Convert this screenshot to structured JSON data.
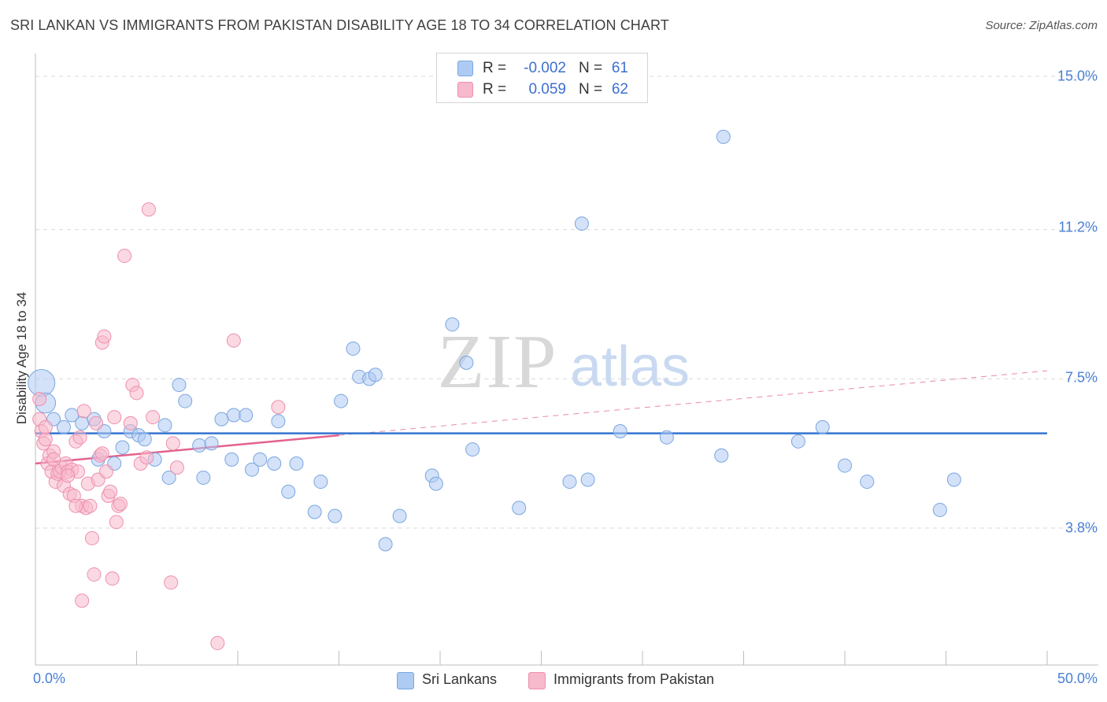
{
  "header": {
    "title": "SRI LANKAN VS IMMIGRANTS FROM PAKISTAN DISABILITY AGE 18 TO 34 CORRELATION CHART",
    "source": "Source: ZipAtlas.com"
  },
  "watermark": {
    "part1": "ZIP",
    "part2": "atlas"
  },
  "legend_top": {
    "rows": [
      {
        "r_label": "R =",
        "r_value": "-0.002",
        "n_label": "N =",
        "n_value": "61",
        "color": "#aecbf3"
      },
      {
        "r_label": "R =",
        "r_value": "0.059",
        "n_label": "N =",
        "n_value": "62",
        "color": "#f7b9cc"
      }
    ]
  },
  "legend_bottom": {
    "items": [
      {
        "label": "Sri Lankans",
        "color": "#aecbf3"
      },
      {
        "label": "Immigrants from Pakistan",
        "color": "#f7b9cc"
      }
    ]
  },
  "chart_data": {
    "type": "scatter",
    "title": "SRI LANKAN VS IMMIGRANTS FROM PAKISTAN DISABILITY AGE 18 TO 34 CORRELATION CHART",
    "xlabel": "",
    "ylabel": "Disability Age 18 to 34",
    "xlim": [
      0,
      50
    ],
    "ylim": [
      0.5,
      16.0
    ],
    "x_tick_labels": [
      "0.0%",
      "50.0%"
    ],
    "y_ticks": [
      3.8,
      7.5,
      11.2,
      15.0
    ],
    "y_tick_labels": [
      "3.8%",
      "7.5%",
      "11.2%",
      "15.0%"
    ],
    "grid": true,
    "series": [
      {
        "name": "Sri Lankans",
        "color": "#aecbf3",
        "stroke": "#7aa6e0",
        "trend": {
          "x0": 0,
          "y0": 6.15,
          "x1": 50,
          "y1": 6.15,
          "color": "#3574d0"
        },
        "points": [
          [
            0.3,
            7.4,
            2
          ],
          [
            0.5,
            6.9,
            1.5
          ],
          [
            0.9,
            6.5,
            1
          ],
          [
            1.4,
            6.3,
            1
          ],
          [
            1.8,
            6.6,
            1
          ],
          [
            2.3,
            6.4,
            1
          ],
          [
            2.9,
            6.5,
            1
          ],
          [
            3.4,
            6.2,
            1
          ],
          [
            3.1,
            5.5,
            1
          ],
          [
            3.9,
            5.4,
            1
          ],
          [
            4.3,
            5.8,
            1
          ],
          [
            4.7,
            6.2,
            1
          ],
          [
            5.1,
            6.1,
            1
          ],
          [
            5.4,
            6.0,
            1
          ],
          [
            5.9,
            5.5,
            1
          ],
          [
            6.4,
            6.35,
            1
          ],
          [
            6.6,
            5.05,
            1
          ],
          [
            7.1,
            7.35,
            1
          ],
          [
            7.4,
            6.95,
            1
          ],
          [
            8.1,
            5.85,
            1
          ],
          [
            8.3,
            5.05,
            1
          ],
          [
            8.7,
            5.9,
            1
          ],
          [
            9.2,
            6.5,
            1
          ],
          [
            9.7,
            5.5,
            1
          ],
          [
            9.8,
            6.6,
            1
          ],
          [
            10.4,
            6.6,
            1
          ],
          [
            10.7,
            5.25,
            1
          ],
          [
            11.1,
            5.5,
            1
          ],
          [
            11.8,
            5.4,
            1
          ],
          [
            12.0,
            6.45,
            1
          ],
          [
            12.5,
            4.7,
            1
          ],
          [
            12.9,
            5.4,
            1
          ],
          [
            13.8,
            4.2,
            1
          ],
          [
            14.1,
            4.95,
            1
          ],
          [
            14.8,
            4.1,
            1
          ],
          [
            15.1,
            6.95,
            1
          ],
          [
            15.7,
            8.25,
            1
          ],
          [
            16.0,
            7.55,
            1
          ],
          [
            16.5,
            7.5,
            1
          ],
          [
            16.8,
            7.6,
            1
          ],
          [
            17.3,
            3.4,
            1
          ],
          [
            18.0,
            4.1,
            1
          ],
          [
            19.6,
            5.1,
            1
          ],
          [
            19.8,
            4.9,
            1
          ],
          [
            20.6,
            8.85,
            1
          ],
          [
            21.3,
            7.9,
            1
          ],
          [
            21.6,
            5.75,
            1
          ],
          [
            23.9,
            4.3,
            1
          ],
          [
            26.4,
            4.95,
            1
          ],
          [
            27.0,
            11.35,
            1
          ],
          [
            27.3,
            5.0,
            1
          ],
          [
            28.9,
            6.2,
            1
          ],
          [
            31.2,
            6.05,
            1
          ],
          [
            33.9,
            5.6,
            1
          ],
          [
            34.0,
            13.5,
            1
          ],
          [
            37.7,
            5.95,
            1
          ],
          [
            38.9,
            6.3,
            1
          ],
          [
            40.0,
            5.35,
            1
          ],
          [
            41.1,
            4.95,
            1
          ],
          [
            44.7,
            4.25,
            1
          ],
          [
            45.4,
            5.0,
            1
          ]
        ]
      },
      {
        "name": "Immigrants from Pakistan",
        "color": "#f7b9cc",
        "stroke": "#ee8fae",
        "trend": {
          "x0": 0,
          "y0": 5.4,
          "x1": 15.0,
          "y1": 6.1,
          "color": "#e4628d"
        },
        "trend_dashed": {
          "x0": 15.0,
          "y0": 6.1,
          "x1": 50,
          "y1": 7.7,
          "color": "#e88aa8"
        },
        "points": [
          [
            0.2,
            6.5,
            1
          ],
          [
            0.3,
            6.2,
            1
          ],
          [
            0.4,
            5.9,
            1
          ],
          [
            0.5,
            6.0,
            1
          ],
          [
            0.6,
            5.4,
            1
          ],
          [
            0.7,
            5.6,
            1
          ],
          [
            0.8,
            5.2,
            1
          ],
          [
            0.9,
            5.7,
            1
          ],
          [
            1.0,
            4.95,
            1
          ],
          [
            1.1,
            5.15,
            1
          ],
          [
            1.2,
            5.2,
            1
          ],
          [
            1.3,
            5.3,
            1
          ],
          [
            1.4,
            4.85,
            1
          ],
          [
            1.5,
            5.4,
            1
          ],
          [
            1.6,
            5.2,
            1
          ],
          [
            1.7,
            4.65,
            1
          ],
          [
            1.8,
            5.25,
            1
          ],
          [
            1.9,
            4.6,
            1
          ],
          [
            2.0,
            5.95,
            1
          ],
          [
            2.1,
            5.2,
            1
          ],
          [
            2.2,
            6.05,
            1
          ],
          [
            2.3,
            4.35,
            1
          ],
          [
            2.4,
            6.7,
            1
          ],
          [
            2.5,
            4.3,
            1
          ],
          [
            2.6,
            4.9,
            1
          ],
          [
            2.7,
            4.35,
            1
          ],
          [
            2.8,
            3.55,
            1
          ],
          [
            2.9,
            2.65,
            1
          ],
          [
            3.0,
            6.4,
            1
          ],
          [
            3.1,
            5.0,
            1
          ],
          [
            3.2,
            5.6,
            1
          ],
          [
            3.3,
            8.4,
            1
          ],
          [
            3.4,
            8.55,
            1
          ],
          [
            3.5,
            5.2,
            1
          ],
          [
            3.6,
            4.6,
            1
          ],
          [
            3.7,
            4.7,
            1
          ],
          [
            3.8,
            2.55,
            1
          ],
          [
            3.9,
            6.55,
            1
          ],
          [
            4.0,
            3.95,
            1
          ],
          [
            4.1,
            4.35,
            1
          ],
          [
            4.2,
            4.4,
            1
          ],
          [
            4.4,
            10.55,
            1
          ],
          [
            4.7,
            6.4,
            1
          ],
          [
            4.8,
            7.35,
            1
          ],
          [
            5.0,
            7.15,
            1
          ],
          [
            5.2,
            5.4,
            1
          ],
          [
            5.5,
            5.55,
            1
          ],
          [
            5.6,
            11.7,
            1
          ],
          [
            5.8,
            6.55,
            1
          ],
          [
            6.8,
            5.9,
            1
          ],
          [
            6.7,
            2.45,
            1
          ],
          [
            7.0,
            5.3,
            1
          ],
          [
            2.3,
            2.0,
            1
          ],
          [
            9.0,
            0.95,
            1
          ],
          [
            9.8,
            8.45,
            1
          ],
          [
            12.0,
            6.8,
            1
          ],
          [
            0.5,
            6.3,
            1
          ],
          [
            1.6,
            5.1,
            1
          ],
          [
            2.0,
            4.35,
            1
          ],
          [
            0.9,
            5.5,
            1
          ],
          [
            3.3,
            5.65,
            1
          ],
          [
            0.2,
            7.0,
            1
          ]
        ]
      }
    ]
  }
}
